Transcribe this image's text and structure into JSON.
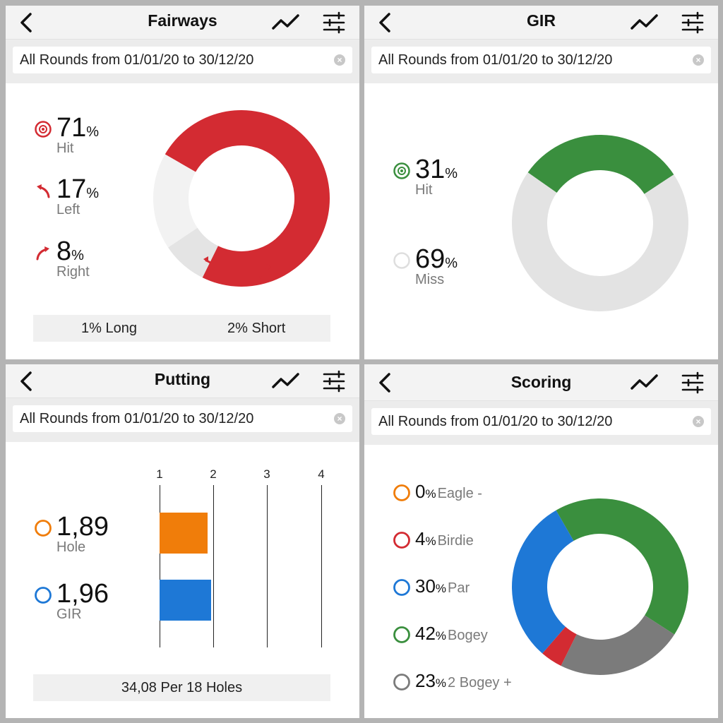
{
  "colors": {
    "accent_red": "#d32b32",
    "light_red_segment": "#f2f2f2",
    "dark_light_segment": "#e4e4e4",
    "green": "#3a8f3e",
    "miss_gray": "#e3e3e3",
    "orange": "#f07d0a",
    "blue": "#1e78d6",
    "gray": "#7b7b7b"
  },
  "fairways": {
    "title": "Fairways",
    "filter": "All Rounds from 01/01/20 to 30/12/20",
    "icons": {
      "back": "chevron-left-icon",
      "trend": "trend-line-icon",
      "filters": "sliders-icon",
      "clear": "clear-circle-icon"
    },
    "stats": [
      {
        "value": "71",
        "unit": "%",
        "label": "Hit",
        "icon": "target-icon"
      },
      {
        "value": "17",
        "unit": "%",
        "label": "Left",
        "icon": "arrow-left-curve-icon"
      },
      {
        "value": "8",
        "unit": "%",
        "label": "Right",
        "icon": "arrow-right-curve-icon"
      }
    ],
    "footer": {
      "long": "1% Long",
      "short": "2% Short"
    }
  },
  "gir": {
    "title": "GIR",
    "filter": "All Rounds from 01/01/20 to 30/12/20",
    "stats": [
      {
        "value": "31",
        "unit": "%",
        "label": "Hit",
        "icon": "target-green-icon"
      },
      {
        "value": "69",
        "unit": "%",
        "label": "Miss",
        "icon": "empty-circle-icon"
      }
    ]
  },
  "putting": {
    "title": "Putting",
    "filter": "All Rounds from 01/01/20 to 30/12/20",
    "axis_ticks": [
      "1",
      "2",
      "3",
      "4"
    ],
    "stats": [
      {
        "value": "1,89",
        "label": "Hole",
        "value_num": 1.89,
        "color": "#f07d0a"
      },
      {
        "value": "1,96",
        "label": "GIR",
        "value_num": 1.96,
        "color": "#1e78d6"
      }
    ],
    "footer": "34,08 Per 18 Holes"
  },
  "scoring": {
    "title": "Scoring",
    "filter": "All Rounds from 01/01/20 to 30/12/20",
    "stats": [
      {
        "value": "0",
        "unit": "%",
        "label": "Eagle -",
        "color": "#f07d0a"
      },
      {
        "value": "4",
        "unit": "%",
        "label": "Birdie",
        "color": "#d32b32"
      },
      {
        "value": "30",
        "unit": "%",
        "label": "Par",
        "color": "#1e78d6"
      },
      {
        "value": "42",
        "unit": "%",
        "label": "Bogey",
        "color": "#3a8f3e"
      },
      {
        "value": "23",
        "unit": "%",
        "label": "2 Bogey +",
        "color": "#7b7b7b"
      }
    ]
  }
}
